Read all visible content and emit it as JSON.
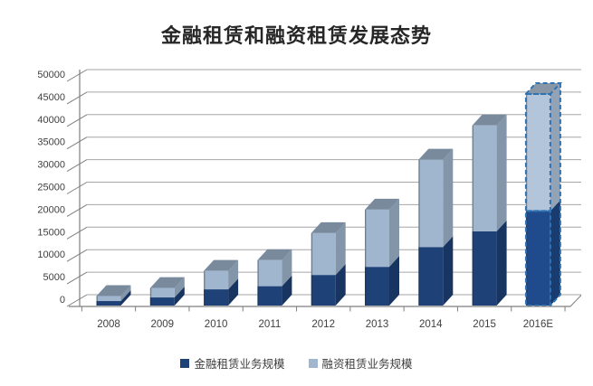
{
  "title": "金融租赁和融资租赁发展态势",
  "chart_data": {
    "type": "bar",
    "stacked": true,
    "style": "3d-column",
    "categories": [
      "2008",
      "2009",
      "2010",
      "2011",
      "2012",
      "2013",
      "2014",
      "2015",
      "2016E"
    ],
    "series": [
      {
        "name": "金融租赁业务规模",
        "color": "#1E4178",
        "values": [
          1000,
          1800,
          3600,
          4300,
          6800,
          8600,
          13000,
          16500,
          21000
        ]
      },
      {
        "name": "融资租赁业务规模",
        "color": "#9FB6CE",
        "values": [
          1100,
          2100,
          4100,
          5800,
          9300,
          12700,
          19400,
          23500,
          26000
        ]
      }
    ],
    "totals": [
      2100,
      3900,
      7700,
      10100,
      16100,
      21300,
      32400,
      40000,
      47000
    ],
    "ylim": [
      0,
      50000
    ],
    "ytick_step": 5000,
    "ytick_labels": [
      "0",
      "5000",
      "10000",
      "15000",
      "20000",
      "25000",
      "30000",
      "35000",
      "40000",
      "45000",
      "50000"
    ],
    "xlabel": "",
    "ylabel": "",
    "grid": true,
    "legend_position": "bottom",
    "estimated_category": "2016E",
    "estimated_outline_color": "#2E74B5",
    "estimated_fill_dark": "#1F4A8C",
    "estimated_fill_light": "#B3C5DB",
    "gridline_color": "#A6A6A6",
    "axis_color": "#7F7F7F",
    "label_color": "#3F3F3F"
  }
}
